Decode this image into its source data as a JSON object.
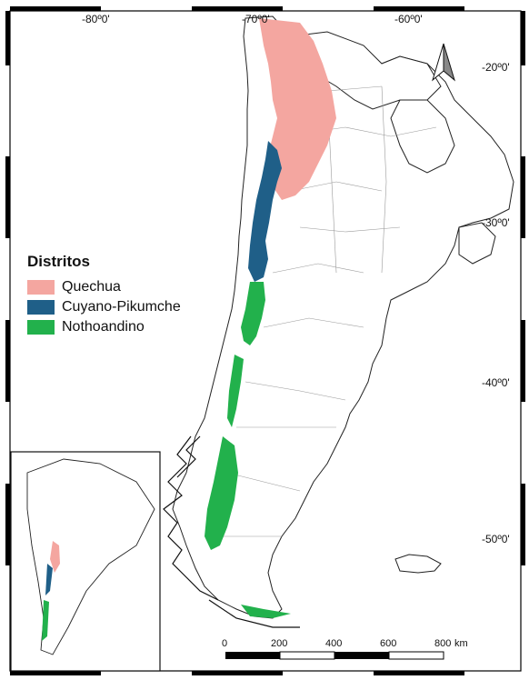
{
  "legend": {
    "title": "Distritos",
    "items": [
      {
        "label": "Quechua",
        "color": "#f4a6a0"
      },
      {
        "label": "Cuyano-Pikumche",
        "color": "#1f5f88"
      },
      {
        "label": "Nothoandino",
        "color": "#22b14c"
      }
    ]
  },
  "graticule": {
    "longitudes": [
      "-80º0'",
      "-70º0'",
      "-60º0'"
    ],
    "latitudes": [
      "-20º0'",
      "-30º0'",
      "-40º0'",
      "-50º0'"
    ]
  },
  "scale_bar": {
    "labels": [
      "0",
      "200",
      "400",
      "600",
      "800"
    ],
    "unit": "km"
  },
  "north_arrow": {
    "icon": "north-arrow-icon"
  }
}
